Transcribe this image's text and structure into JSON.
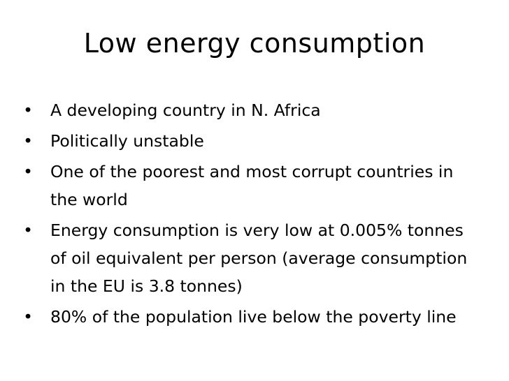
{
  "slide": {
    "title": "Low energy consumption",
    "bullet_glyph": "•",
    "bullets": [
      "A developing country in N. Africa",
      "Politically unstable",
      "One of the poorest and most corrupt countries in the world",
      "Energy consumption is very low at 0.005% tonnes of oil equivalent per person (average consumption in the EU is 3.8 tonnes)",
      "80% of the population live below the poverty line"
    ]
  }
}
